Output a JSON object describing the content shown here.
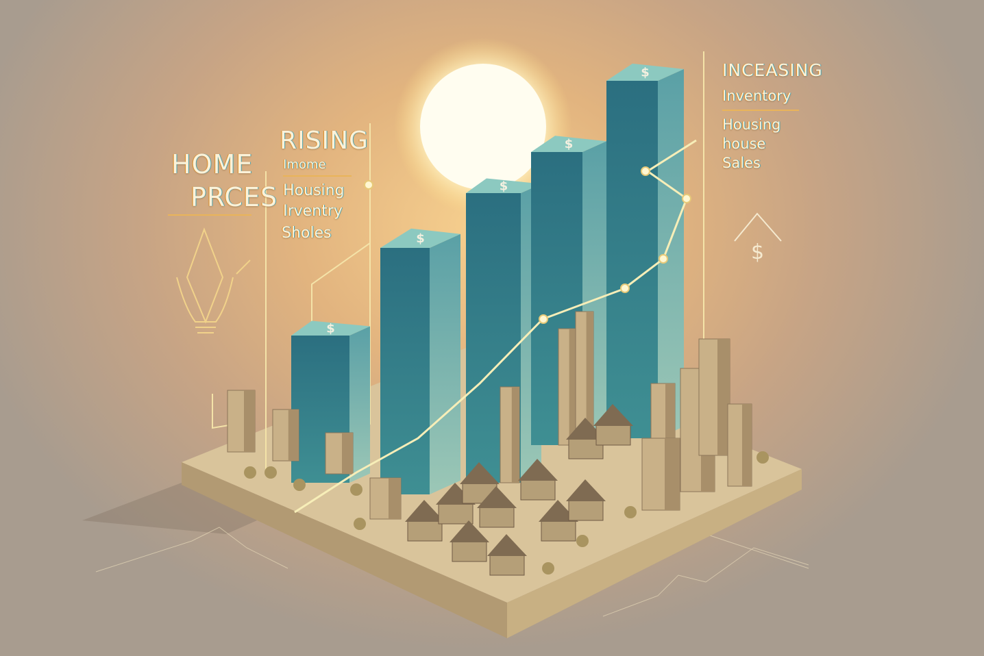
{
  "left_block": {
    "line1": "HOME",
    "line2": "PRCES"
  },
  "middle_block": {
    "title": "RISING",
    "subtitle": "Imome",
    "items": [
      "Housing",
      "Irventry",
      "Sholes"
    ]
  },
  "right_block": {
    "title": "INCEASING",
    "subtitle": "Inventory",
    "items": [
      "Housing",
      "house",
      "Sales"
    ]
  },
  "bar_symbol": "$",
  "house_icon_symbol": "$",
  "colors": {
    "bar_front": "#2f7f8c",
    "bar_side": "#5aa7a8",
    "bar_top": "#8cc9c0",
    "platform": "#d7c29a",
    "line": "#f4e6a6",
    "sun": "#fffbe6"
  }
}
